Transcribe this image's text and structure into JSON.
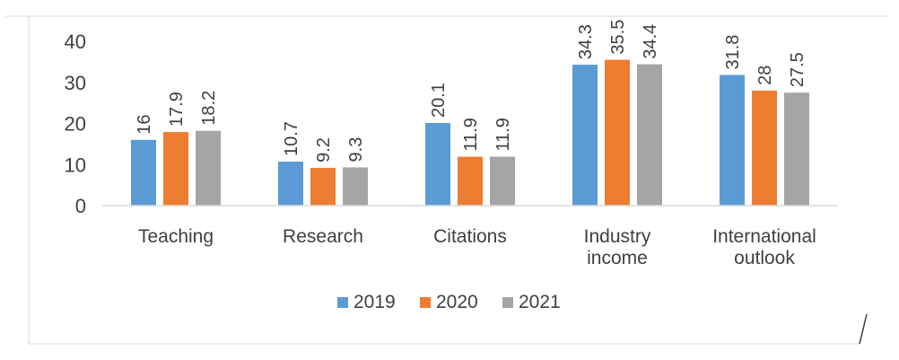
{
  "chart_data": {
    "type": "bar",
    "title": "",
    "xlabel": "",
    "ylabel": "",
    "categories": [
      "Teaching",
      "Research",
      "Citations",
      "Industry income",
      "International outlook"
    ],
    "category_lines": [
      [
        "Teaching"
      ],
      [
        "Research"
      ],
      [
        "Citations"
      ],
      [
        "Industry",
        "income"
      ],
      [
        "International",
        "outlook"
      ]
    ],
    "series": [
      {
        "name": "2019",
        "values": [
          16,
          10.7,
          20.1,
          34.3,
          31.8
        ],
        "labels": [
          "16",
          "10.7",
          "20.1",
          "34.3",
          "31.8"
        ],
        "color": "#5B9BD5"
      },
      {
        "name": "2020",
        "values": [
          17.9,
          9.2,
          11.9,
          35.5,
          28
        ],
        "labels": [
          "17.9",
          "9.2",
          "11.9",
          "35.5",
          "28"
        ],
        "color": "#ED7D31"
      },
      {
        "name": "2021",
        "values": [
          18.2,
          9.3,
          11.9,
          34.4,
          27.5
        ],
        "labels": [
          "18.2",
          "9.3",
          "11.9",
          "34.4",
          "27.5"
        ],
        "color": "#A5A5A5"
      }
    ],
    "ylim": [
      0,
      40
    ],
    "yticks": [
      0,
      10,
      20,
      30,
      40
    ],
    "grid": false,
    "legend_position": "bottom",
    "data_labels": true
  }
}
